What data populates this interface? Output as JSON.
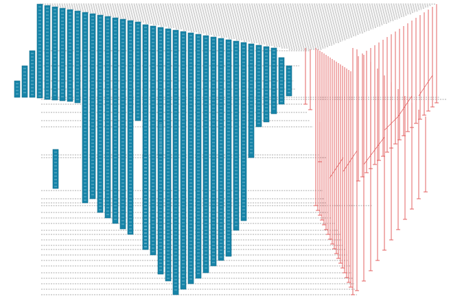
{
  "diagram": {
    "type": "sequence-timeline",
    "colors": {
      "activation": "#1784a8",
      "activation_stroke": "#0f6a89",
      "message": "#555555",
      "return": "#e05050",
      "background": "#ffffff"
    },
    "participant_count": 37,
    "labels_legible": false
  }
}
